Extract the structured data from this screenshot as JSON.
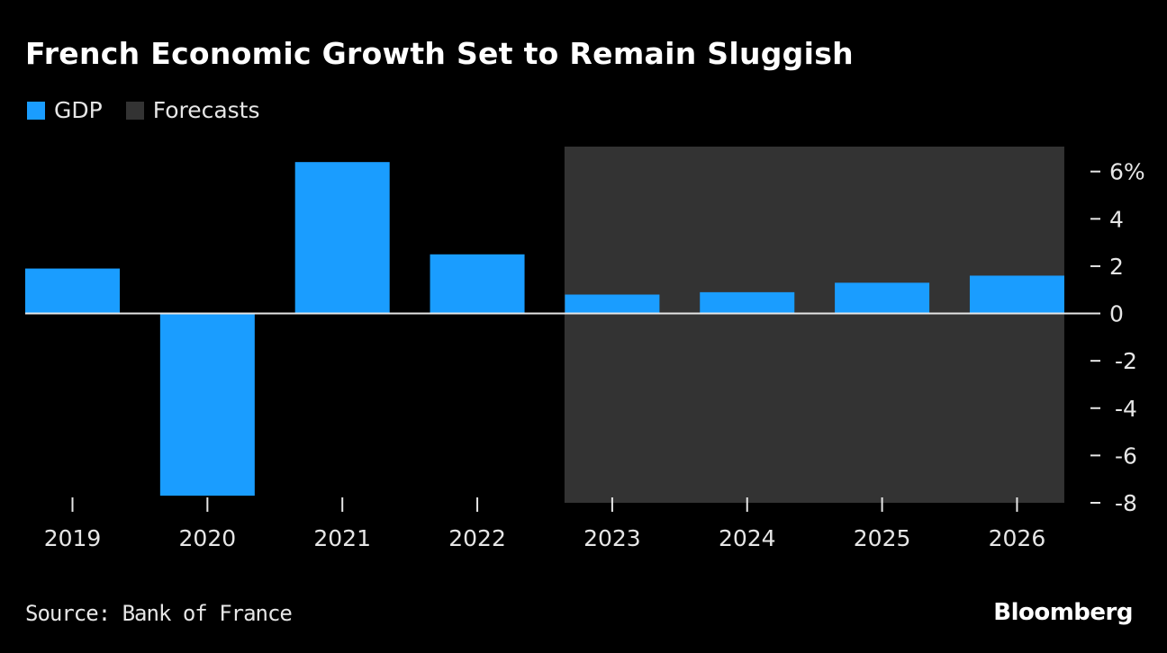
{
  "chart_data": {
    "type": "bar",
    "title": "French Economic Growth Set to Remain Sluggish",
    "categories": [
      "2019",
      "2020",
      "2021",
      "2022",
      "2023",
      "2024",
      "2025",
      "2026"
    ],
    "series": [
      {
        "name": "GDP",
        "values": [
          1.9,
          -7.7,
          6.4,
          2.5,
          0.8,
          0.9,
          1.3,
          1.6
        ],
        "color": "#1a9dff"
      }
    ],
    "forecast_range": [
      "2023",
      "2026"
    ],
    "legend": [
      {
        "label": "GDP",
        "color": "#1a9dff"
      },
      {
        "label": "Forecasts",
        "color": "#333333"
      }
    ],
    "legend_placement": "top-left",
    "ylim": [
      -8,
      6
    ],
    "yticks": [
      6,
      4,
      2,
      0,
      -2,
      -4,
      -6,
      -8
    ],
    "ytick_labels": [
      "6%",
      "4",
      "2",
      "0",
      "-2",
      "-4",
      "-6",
      "-8"
    ],
    "y_axis_side": "right",
    "grid": false,
    "xlabel": "",
    "ylabel": ""
  },
  "footer": {
    "source": "Source: Bank of France",
    "brand": "Bloomberg"
  }
}
